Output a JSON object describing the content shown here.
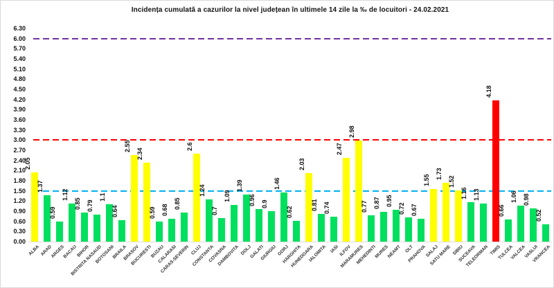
{
  "chart_data": {
    "type": "bar",
    "title": "Incidența cumulată a cazurilor la nivel județean în ultimele 14 zile   la ‰ de locuitori  - 24.02.2021",
    "xlabel": "",
    "ylabel": "",
    "ylim": [
      0,
      6.3
    ],
    "ytick_step": 0.3,
    "ytick_decimals": 2,
    "grid": false,
    "legend": "none",
    "categories": [
      "ALBA",
      "ARAD",
      "ARGES",
      "BACAU",
      "BIHOR",
      "BISTRITA NASAUD",
      "BOTOSANI",
      "BRAILA",
      "BRASOV",
      "BUCURESTI",
      "BUZAU",
      "CALARASI",
      "CARAS-SEVERIN",
      "CLUJ",
      "CONSTANTA",
      "COVASNA",
      "DAMBOVITA",
      "DOLJ",
      "GALATI",
      "GIURGIU",
      "GORJ",
      "HARGHITA",
      "HUNEDOARA",
      "IALOMITA",
      "IASI",
      "ILFOV",
      "MARAMURES",
      "MEHEDINTI",
      "MURES",
      "NEAMT",
      "OLT",
      "PRAHOVA",
      "SALAJ",
      "SATU MARE",
      "SIBIU",
      "SUCEAVA",
      "TELEORMAN",
      "TIMIS",
      "TULCEA",
      "VALCEA",
      "VASLUI",
      "VRANCEA"
    ],
    "values": [
      2.05,
      1.37,
      0.59,
      1.12,
      0.85,
      0.79,
      1.1,
      0.64,
      2.55,
      2.34,
      0.59,
      0.68,
      0.85,
      2.6,
      1.24,
      0.7,
      1.09,
      1.39,
      0.96,
      0.9,
      1.46,
      0.62,
      2.03,
      0.81,
      0.74,
      2.47,
      2.98,
      0.77,
      0.87,
      0.95,
      0.72,
      0.67,
      1.55,
      1.73,
      1.52,
      1.16,
      1.13,
      4.18,
      0.66,
      1.06,
      0.98,
      0.52
    ],
    "value_labels": [
      "2.05",
      "1.37",
      "0.59",
      "1.12",
      "0.85",
      "0.79",
      "1.1",
      "0.64",
      "2.55",
      "2.34",
      "0.59",
      "0.68",
      "0.85",
      "2.6",
      "1.24",
      "0.7",
      "1.09",
      "1.39",
      "0.96",
      "0.9",
      "1.46",
      "0.62",
      "2.03",
      "0.81",
      "0.74",
      "2.47",
      "2.98",
      "0.77",
      "0.87",
      "0.95",
      "0.72",
      "0.67",
      "1.55",
      "1.73",
      "1.52",
      "1.16",
      "1.13",
      "4.18",
      "0.66",
      "1.06",
      "0.98",
      "0.52"
    ],
    "bar_colors": [
      "yellow",
      "green",
      "green",
      "green",
      "green",
      "green",
      "green",
      "green",
      "yellow",
      "yellow",
      "green",
      "green",
      "green",
      "yellow",
      "green",
      "green",
      "green",
      "green",
      "green",
      "green",
      "green",
      "green",
      "yellow",
      "green",
      "green",
      "yellow",
      "yellow",
      "green",
      "green",
      "green",
      "green",
      "green",
      "yellow",
      "yellow",
      "yellow",
      "green",
      "green",
      "red",
      "green",
      "green",
      "green",
      "green"
    ],
    "palette": {
      "green": "#00E05E",
      "yellow": "#FFFF00",
      "red": "#FF0000"
    },
    "threshold_lines": [
      {
        "value": 6.0,
        "color": "#7030A0"
      },
      {
        "value": 3.0,
        "color": "#FF0000"
      },
      {
        "value": 1.5,
        "color": "#00B0F0"
      }
    ]
  }
}
